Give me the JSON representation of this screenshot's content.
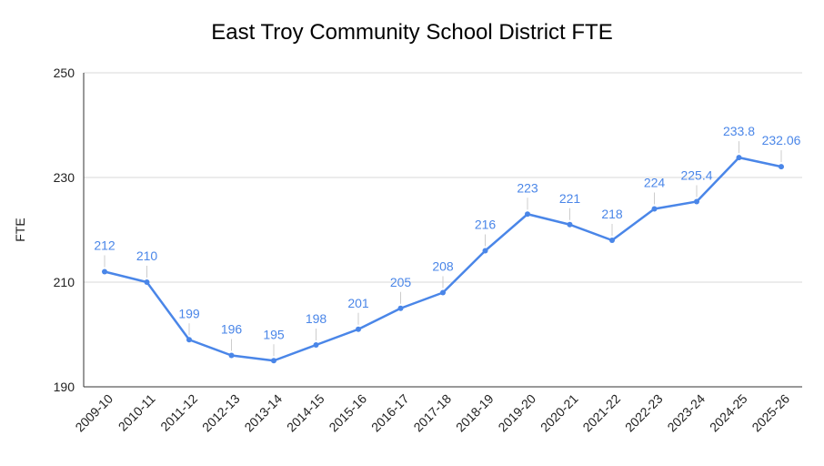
{
  "chart_data": {
    "type": "line",
    "title": "East Troy Community School District FTE",
    "xlabel": "",
    "ylabel": "FTE",
    "ylim": [
      190,
      250
    ],
    "yticks": [
      190,
      210,
      230,
      250
    ],
    "grid": true,
    "legend": "none",
    "colors": {
      "series": "#4a86e8",
      "label": "#4a86e8",
      "grid": "#d9d9d9",
      "axis": "#333333"
    },
    "categories": [
      "2009-10",
      "2010-11",
      "2011-12",
      "2012-13",
      "2013-14",
      "2014-15",
      "2015-16",
      "2016-17",
      "2017-18",
      "2018-19",
      "2019-20",
      "2020-21",
      "2021-22",
      "2022-23",
      "2023-24",
      "2024-25",
      "2025-26"
    ],
    "series": [
      {
        "values": [
          212,
          210,
          199,
          196,
          195,
          198,
          201,
          205,
          208,
          216,
          223,
          221,
          218,
          224,
          225.4,
          233.8,
          232.06
        ],
        "labels": [
          "212",
          "210",
          "199",
          "196",
          "195",
          "198",
          "201",
          "205",
          "208",
          "216",
          "223",
          "221",
          "218",
          "224",
          "225.4",
          "233.8",
          "232.06"
        ]
      }
    ]
  }
}
